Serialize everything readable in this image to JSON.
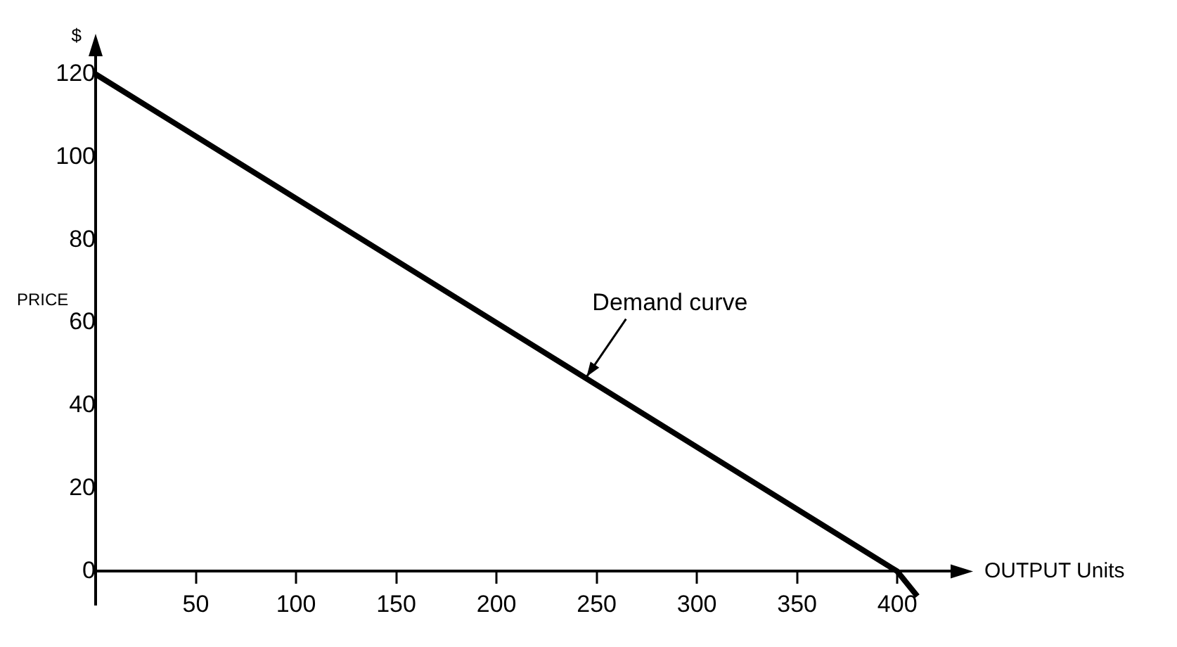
{
  "chart_data": {
    "type": "line",
    "xlabel": "OUTPUT Units",
    "ylabel": "PRICE",
    "title": "$",
    "x": [
      0,
      400,
      410
    ],
    "series": [
      {
        "color": "#000000",
        "values": [
          120,
          0,
          -6
        ]
      }
    ],
    "xlim": [
      0,
      428
    ],
    "ylim": [
      -8,
      125
    ],
    "xticks": [
      50,
      100,
      150,
      200,
      250,
      300,
      350,
      400
    ],
    "yticks": [
      0,
      20,
      40,
      60,
      80,
      100,
      120
    ],
    "annotations": [
      {
        "text": "Demand curve",
        "x": 245,
        "y": 47
      }
    ],
    "grid": false,
    "legend": false,
    "marker": "none",
    "line_style": "solid"
  }
}
